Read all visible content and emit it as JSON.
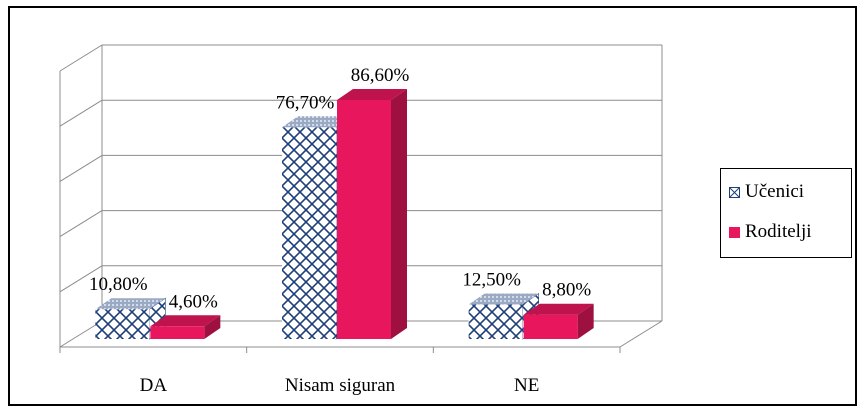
{
  "chart_data": {
    "type": "bar",
    "categories": [
      "DA",
      "Nisam siguran",
      "NE"
    ],
    "series": [
      {
        "name": "Učenici",
        "values": [
          10.8,
          76.7,
          12.5
        ],
        "labels": [
          "10,80%",
          "76,70%",
          "12,50%"
        ],
        "color": "#1f3f7a",
        "pattern": "crosshatch"
      },
      {
        "name": "Roditelji",
        "values": [
          4.6,
          86.6,
          8.8
        ],
        "labels": [
          "4,60%",
          "86,60%",
          "8,80%"
        ],
        "color": "#e8175d"
      }
    ],
    "ylim": [
      0,
      100
    ],
    "grid": true,
    "legend_position": "right",
    "three_d": true
  }
}
